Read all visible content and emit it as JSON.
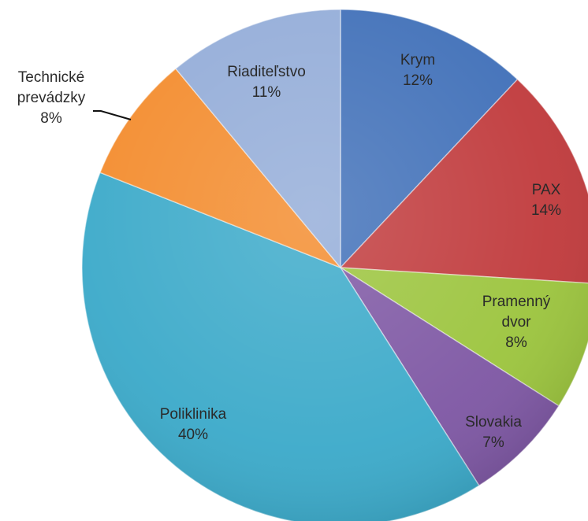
{
  "chart_data": {
    "type": "pie",
    "categories": [
      "Krym",
      "PAX",
      "Pramenný dvor",
      "Slovakia",
      "Poliklinika",
      "Technické prevádzky",
      "Riaditeľstvo"
    ],
    "values": [
      12,
      14,
      8,
      7,
      40,
      8,
      11
    ],
    "value_labels": [
      "12%",
      "14%",
      "8%",
      "7%",
      "40%",
      "8%",
      "11%"
    ],
    "colors": [
      "#3f6fb8",
      "#c0393b",
      "#9bc43c",
      "#7d56a3",
      "#3aa9c9",
      "#f38b2c",
      "#93acd8"
    ],
    "start_angle": "top",
    "direction": "clockwise"
  }
}
